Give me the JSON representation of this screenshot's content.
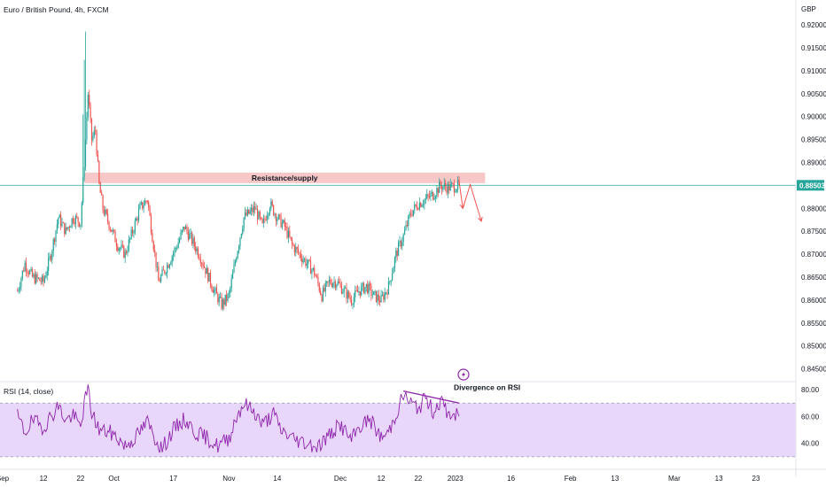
{
  "chart_data": [
    {
      "type": "candlestick",
      "title": "Euro / British Pound, 4h, FXCM",
      "currency": "GBP",
      "y_axis_position": "right",
      "ylim": [
        0.843,
        0.9235
      ],
      "y_ticks": [
        "0.92000",
        "0.91500",
        "0.91000",
        "0.90500",
        "0.90000",
        "0.89500",
        "0.89000",
        "0.88500",
        "0.88000",
        "0.87500",
        "0.87000",
        "0.86500",
        "0.86000",
        "0.85500",
        "0.85000",
        "0.84500"
      ],
      "x_ticks": [
        "Sep",
        "12",
        "22",
        "Oct",
        "17",
        "Nov",
        "14",
        "Dec",
        "12",
        "22",
        "2023",
        "16",
        "Feb",
        "13",
        "Mar",
        "13",
        "23"
      ],
      "last_price": "0.88503",
      "up_color": "#26a69a",
      "down_color": "#ef5350",
      "price_line_color": "#26a69a",
      "series": [
        {
          "name": "Euro / British Pound",
          "anchors": [
            [
              "Sep 5",
              0.862
            ],
            [
              "Sep 7",
              0.868
            ],
            [
              "Sep 9",
              0.865
            ],
            [
              "Sep 12",
              0.864
            ],
            [
              "Sep 14",
              0.87
            ],
            [
              "Sep 16",
              0.878
            ],
            [
              "Sep 18",
              0.875
            ],
            [
              "Sep 20",
              0.878
            ],
            [
              "Sep 22",
              0.877
            ],
            [
              "Sep 23",
              0.89
            ],
            [
              "Sep 24",
              0.905
            ],
            [
              "Sep 25",
              0.895
            ],
            [
              "Sep 26",
              0.897
            ],
            [
              "Sep 27",
              0.885
            ],
            [
              "Sep 28",
              0.88
            ],
            [
              "Sep 30",
              0.876
            ],
            [
              "Oct 2",
              0.872
            ],
            [
              "Oct 4",
              0.87
            ],
            [
              "Oct 6",
              0.875
            ],
            [
              "Oct 8",
              0.88
            ],
            [
              "Oct 10",
              0.882
            ],
            [
              "Oct 12",
              0.87
            ],
            [
              "Oct 13",
              0.864
            ],
            [
              "Oct 15",
              0.867
            ],
            [
              "Oct 18",
              0.872
            ],
            [
              "Oct 20",
              0.876
            ],
            [
              "Oct 22",
              0.873
            ],
            [
              "Oct 24",
              0.87
            ],
            [
              "Oct 26",
              0.866
            ],
            [
              "Oct 28",
              0.862
            ],
            [
              "Oct 30",
              0.859
            ],
            [
              "Nov 1",
              0.861
            ],
            [
              "Nov 3",
              0.87
            ],
            [
              "Nov 5",
              0.878
            ],
            [
              "Nov 8",
              0.88
            ],
            [
              "Nov 10",
              0.876
            ],
            [
              "Nov 12",
              0.881
            ],
            [
              "Nov 14",
              0.878
            ],
            [
              "Nov 16",
              0.876
            ],
            [
              "Nov 18",
              0.872
            ],
            [
              "Nov 20",
              0.87
            ],
            [
              "Nov 22",
              0.868
            ],
            [
              "Nov 24",
              0.866
            ],
            [
              "Nov 26",
              0.861
            ],
            [
              "Nov 28",
              0.864
            ],
            [
              "Nov 30",
              0.864
            ],
            [
              "Dec 2",
              0.862
            ],
            [
              "Dec 4",
              0.86
            ],
            [
              "Dec 6",
              0.862
            ],
            [
              "Dec 8",
              0.863
            ],
            [
              "Dec 10",
              0.861
            ],
            [
              "Dec 12",
              0.86
            ],
            [
              "Dec 14",
              0.863
            ],
            [
              "Dec 16",
              0.87
            ],
            [
              "Dec 18",
              0.874
            ],
            [
              "Dec 20",
              0.879
            ],
            [
              "Dec 22",
              0.881
            ],
            [
              "Dec 24",
              0.882
            ],
            [
              "Dec 26",
              0.883
            ],
            [
              "Dec 28",
              0.885
            ],
            [
              "Dec 30",
              0.8845
            ],
            [
              "Jan 2",
              0.885
            ]
          ]
        }
      ],
      "resistance_zone": {
        "label": "Resistance/supply",
        "from": "Sep 23",
        "to": "Jan 9",
        "y_low": 0.8855,
        "y_high": 0.8878,
        "color": "#f8c8c8"
      },
      "projection": {
        "color": "#ef5350",
        "points": [
          [
            "Jan 2",
            0.886
          ],
          [
            "Jan 3",
            0.88
          ],
          [
            "Jan 5",
            0.8852
          ],
          [
            "Jan 8",
            0.8772
          ]
        ]
      }
    },
    {
      "type": "line",
      "title": "RSI (14, close)",
      "ylim": [
        22,
        86
      ],
      "y_ticks": [
        "80.00",
        "60.00",
        "40.00"
      ],
      "band": [
        30,
        70
      ],
      "band_color": "#e8d6fb",
      "line_color": "#8e24aa",
      "series": [
        {
          "name": "RSI (14, close)",
          "anchors": [
            [
              "Sep 5",
              60
            ],
            [
              "Sep 7",
              48
            ],
            [
              "Sep 9",
              57
            ],
            [
              "Sep 12",
              52
            ],
            [
              "Sep 14",
              60
            ],
            [
              "Sep 16",
              68
            ],
            [
              "Sep 18",
              57
            ],
            [
              "Sep 20",
              61
            ],
            [
              "Sep 22",
              52
            ],
            [
              "Sep 23",
              70
            ],
            [
              "Sep 24",
              80
            ],
            [
              "Sep 25",
              63
            ],
            [
              "Sep 27",
              50
            ],
            [
              "Sep 30",
              48
            ],
            [
              "Oct 2",
              44
            ],
            [
              "Oct 4",
              38
            ],
            [
              "Oct 7",
              45
            ],
            [
              "Oct 10",
              56
            ],
            [
              "Oct 12",
              44
            ],
            [
              "Oct 14",
              36
            ],
            [
              "Oct 17",
              50
            ],
            [
              "Oct 20",
              58
            ],
            [
              "Oct 23",
              48
            ],
            [
              "Oct 26",
              44
            ],
            [
              "Oct 29",
              38
            ],
            [
              "Nov 1",
              44
            ],
            [
              "Nov 3",
              60
            ],
            [
              "Nov 5",
              70
            ],
            [
              "Nov 8",
              63
            ],
            [
              "Nov 10",
              54
            ],
            [
              "Nov 13",
              62
            ],
            [
              "Nov 15",
              50
            ],
            [
              "Nov 18",
              44
            ],
            [
              "Nov 22",
              40
            ],
            [
              "Nov 25",
              38
            ],
            [
              "Nov 28",
              46
            ],
            [
              "Dec 1",
              54
            ],
            [
              "Dec 4",
              42
            ],
            [
              "Dec 6",
              52
            ],
            [
              "Dec 9",
              58
            ],
            [
              "Dec 12",
              44
            ],
            [
              "Dec 14",
              48
            ],
            [
              "Dec 16",
              62
            ],
            [
              "Dec 18",
              76
            ],
            [
              "Dec 20",
              70
            ],
            [
              "Dec 22",
              66
            ],
            [
              "Dec 24",
              74
            ],
            [
              "Dec 26",
              64
            ],
            [
              "Dec 28",
              72
            ],
            [
              "Dec 30",
              62
            ],
            [
              "Jan 2",
              60
            ]
          ]
        }
      ],
      "annotations": [
        {
          "text": "Divergence on RSI",
          "line": [
            [
              "Dec 18",
              79
            ],
            [
              "Jan 2",
              70
            ]
          ],
          "color": "#8e24aa"
        }
      ]
    }
  ]
}
